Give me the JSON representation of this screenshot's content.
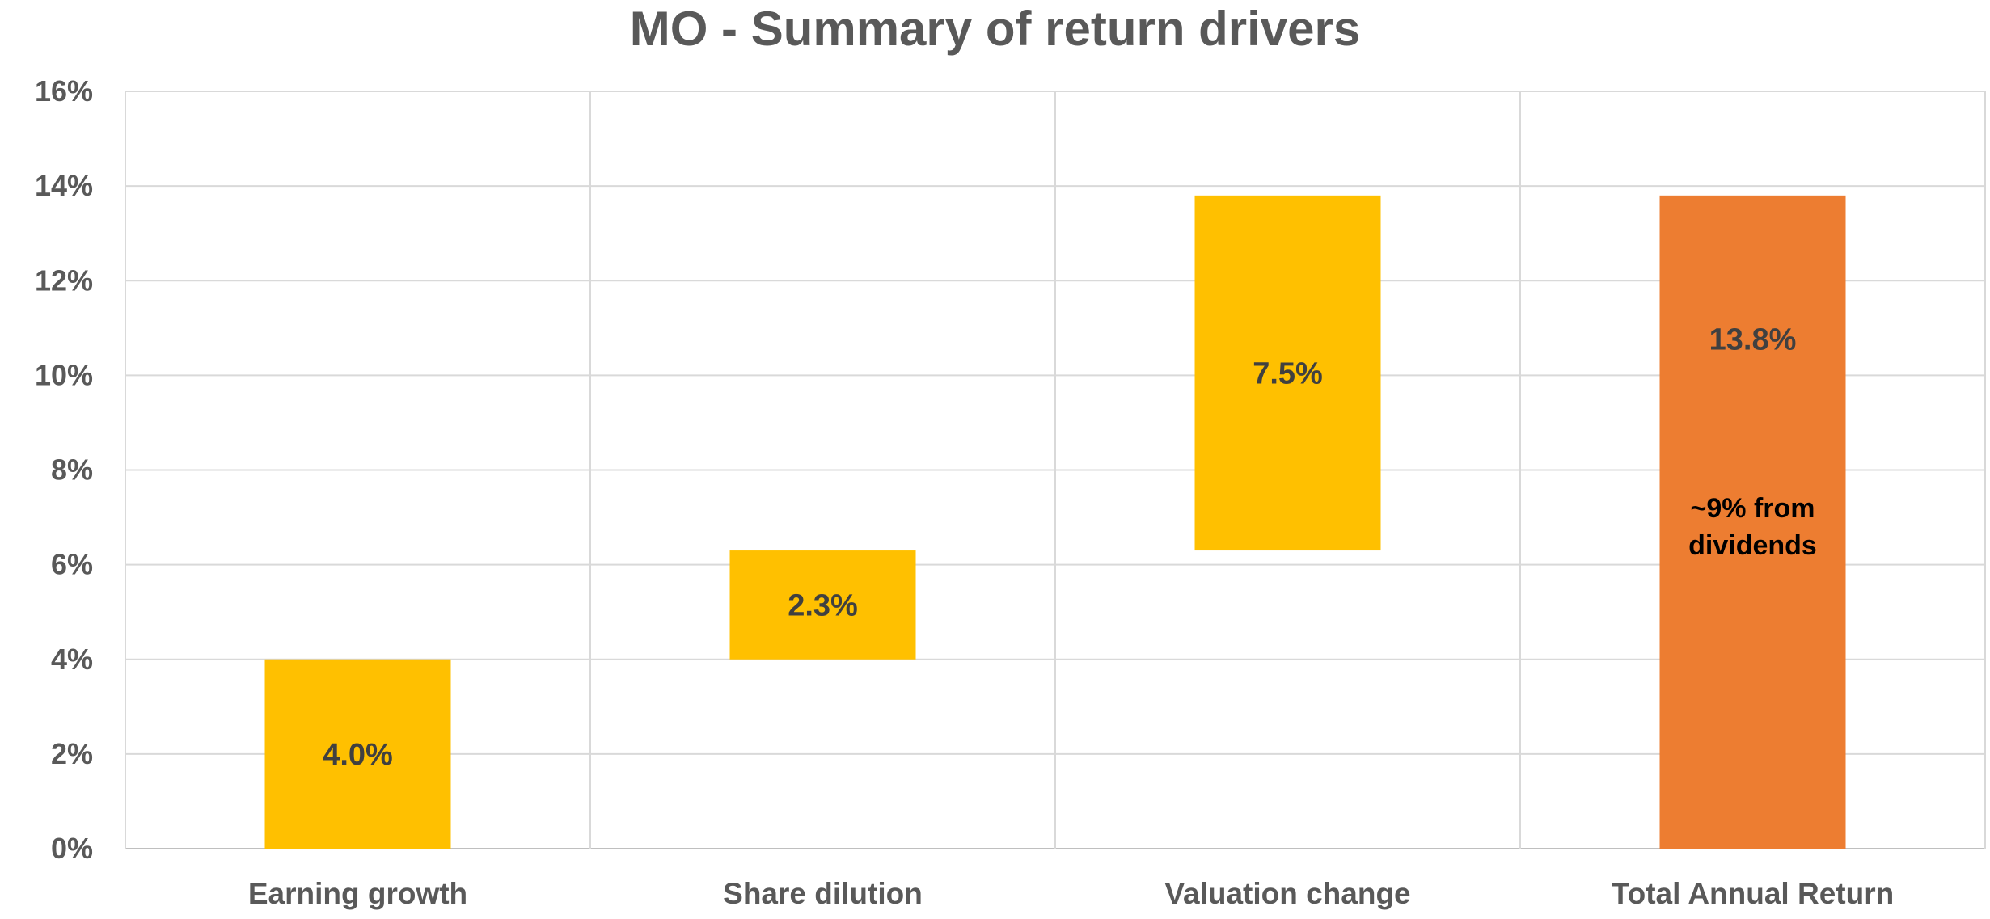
{
  "chart_data": {
    "type": "bar",
    "subtype": "waterfall",
    "title": "MO - Summary of return drivers",
    "xlabel": "",
    "ylabel": "",
    "categories": [
      "Earning growth",
      "Share dilution",
      "Valuation change",
      "Total Annual Return"
    ],
    "bars": [
      {
        "category": "Earning growth",
        "base": 0.0,
        "value": 4.0,
        "label": "4.0%",
        "color": "#FFC000"
      },
      {
        "category": "Share dilution",
        "base": 4.0,
        "value": 2.3,
        "label": "2.3%",
        "color": "#FFC000"
      },
      {
        "category": "Valuation change",
        "base": 6.3,
        "value": 7.5,
        "label": "7.5%",
        "color": "#FFC000"
      },
      {
        "category": "Total Annual Return",
        "base": 0.0,
        "value": 13.8,
        "label": "13.8%",
        "color": "#ED7D31"
      }
    ],
    "annotations": [
      {
        "category": "Total Annual Return",
        "lines": [
          "~9% from",
          "dividends"
        ]
      }
    ],
    "ylim": [
      0,
      16
    ],
    "yticks": [
      0,
      2,
      4,
      6,
      8,
      10,
      12,
      14,
      16
    ],
    "ytick_labels": [
      "0%",
      "2%",
      "4%",
      "6%",
      "8%",
      "10%",
      "12%",
      "14%",
      "16%"
    ],
    "grid": true,
    "legend": "none"
  }
}
